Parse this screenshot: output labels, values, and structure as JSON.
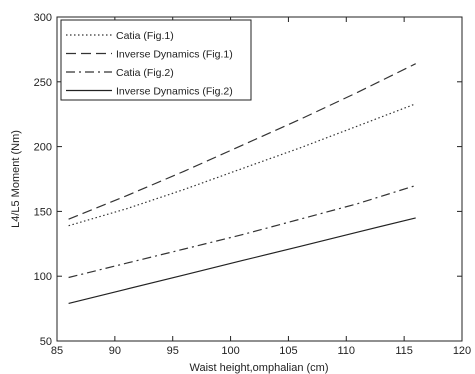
{
  "chart_data": {
    "type": "line",
    "title": "",
    "xlabel": "Waist height,omphalian (cm)",
    "ylabel": "L4/L5 Moment (Nm)",
    "xlim": [
      85,
      120
    ],
    "ylim": [
      50,
      300
    ],
    "xticks": [
      85,
      90,
      95,
      100,
      105,
      110,
      115,
      120
    ],
    "yticks": [
      50,
      100,
      150,
      200,
      250,
      300
    ],
    "grid": false,
    "legend_position": "top-left",
    "x": [
      86,
      116
    ],
    "series": [
      {
        "name": "Catia (Fig.1)",
        "style": "dotted",
        "color": "#333333",
        "x": [
          86,
          91,
          96,
          101,
          106,
          111,
          116
        ],
        "values": [
          139,
          152,
          167,
          183,
          199,
          216,
          233
        ]
      },
      {
        "name": "Inverse Dynamics (Fig.1)",
        "style": "dashed",
        "color": "#333333",
        "x": [
          86,
          91,
          96,
          101,
          106,
          111,
          116
        ],
        "values": [
          144,
          162,
          181,
          201,
          221,
          242,
          264
        ]
      },
      {
        "name": "Catia (Fig.2)",
        "style": "dashdot",
        "color": "#333333",
        "x": [
          86,
          91,
          96,
          101,
          106,
          111,
          116
        ],
        "values": [
          99,
          110,
          121,
          132,
          144,
          156,
          170
        ]
      },
      {
        "name": "Inverse Dynamics (Fig.2)",
        "style": "solid",
        "color": "#222222",
        "x": [
          86,
          91,
          96,
          101,
          106,
          111,
          116
        ],
        "values": [
          79,
          90,
          101,
          112,
          123,
          134,
          145
        ]
      }
    ]
  }
}
